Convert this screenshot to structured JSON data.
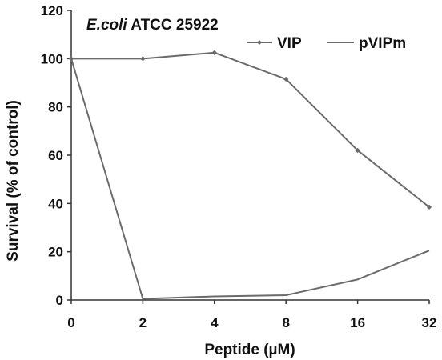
{
  "chart_data": {
    "type": "line",
    "annotation": {
      "italic": "E.coli",
      "rest": " ATCC 25922"
    },
    "xlabel": "Peptide (µM)",
    "ylabel": "Survival (% of control)",
    "categories": [
      "0",
      "2",
      "4",
      "8",
      "16",
      "32"
    ],
    "ylim": [
      0,
      120
    ],
    "yticks": [
      0,
      20,
      40,
      60,
      80,
      100,
      120
    ],
    "grid": false,
    "legend_position": "top-right",
    "series": [
      {
        "name": "VIP",
        "values": [
          100,
          100,
          102.5,
          91.5,
          62,
          38.5
        ],
        "color": "#6b6b6b",
        "marker": "diamond"
      },
      {
        "name": "pVIPm",
        "values": [
          100,
          0.5,
          1.5,
          2,
          8.5,
          20.5
        ],
        "color": "#6b6b6b",
        "marker": "none"
      }
    ]
  }
}
